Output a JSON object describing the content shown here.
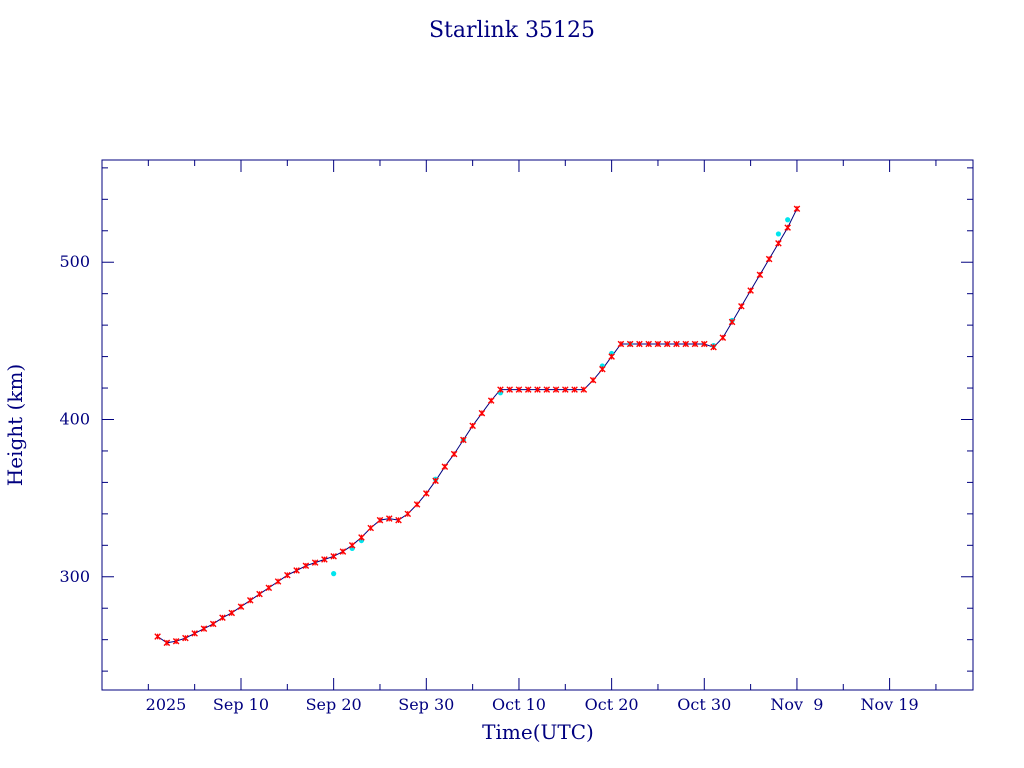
{
  "colors": {
    "axis": "#00007f",
    "line": "#00007f",
    "marker_primary": "#ff0000",
    "marker_secondary": "#00e5ee"
  },
  "chart_data": {
    "type": "line",
    "title": "Starlink 35125",
    "xlabel": "Time(UTC)",
    "ylabel": "Height (km)",
    "x_axis": {
      "type": "date",
      "range": [
        "2025-08-26",
        "2025-11-28"
      ],
      "year_label": "2025",
      "ticks": [
        {
          "date": "2025-09-10",
          "label": "Sep 10"
        },
        {
          "date": "2025-09-20",
          "label": "Sep 20"
        },
        {
          "date": "2025-09-30",
          "label": "Sep 30"
        },
        {
          "date": "2025-10-10",
          "label": "Oct 10"
        },
        {
          "date": "2025-10-20",
          "label": "Oct 20"
        },
        {
          "date": "2025-10-30",
          "label": "Oct 30"
        },
        {
          "date": "2025-11-09",
          "label": "Nov  9"
        },
        {
          "date": "2025-11-19",
          "label": "Nov 19"
        }
      ],
      "minor_ticks": [
        "2025-08-31",
        "2025-09-05",
        "2025-09-15",
        "2025-09-25",
        "2025-10-05",
        "2025-10-15",
        "2025-10-25",
        "2025-11-04",
        "2025-11-14",
        "2025-11-24"
      ]
    },
    "y_axis": {
      "range": [
        228,
        565
      ],
      "ticks": [
        {
          "value": 300,
          "label": "300"
        },
        {
          "value": 400,
          "label": "400"
        },
        {
          "value": 500,
          "label": "500"
        }
      ],
      "minor_ticks": [
        240,
        260,
        280,
        320,
        340,
        360,
        380,
        420,
        440,
        460,
        480,
        520,
        540,
        560
      ]
    },
    "grid": false,
    "series": [
      {
        "marker": "red-cross",
        "points": [
          [
            "2025-09-01",
            262
          ],
          [
            "2025-09-02",
            258
          ],
          [
            "2025-09-03",
            259
          ],
          [
            "2025-09-04",
            261
          ],
          [
            "2025-09-05",
            264
          ],
          [
            "2025-09-06",
            267
          ],
          [
            "2025-09-07",
            270
          ],
          [
            "2025-09-08",
            274
          ],
          [
            "2025-09-09",
            277
          ],
          [
            "2025-09-10",
            281
          ],
          [
            "2025-09-11",
            285
          ],
          [
            "2025-09-12",
            289
          ],
          [
            "2025-09-13",
            293
          ],
          [
            "2025-09-14",
            297
          ],
          [
            "2025-09-15",
            301
          ],
          [
            "2025-09-16",
            304
          ],
          [
            "2025-09-17",
            307
          ],
          [
            "2025-09-18",
            309
          ],
          [
            "2025-09-19",
            311
          ],
          [
            "2025-09-20",
            313
          ],
          [
            "2025-09-21",
            316
          ],
          [
            "2025-09-22",
            320
          ],
          [
            "2025-09-23",
            325
          ],
          [
            "2025-09-24",
            331
          ],
          [
            "2025-09-25",
            336
          ],
          [
            "2025-09-26",
            337
          ],
          [
            "2025-09-27",
            336
          ],
          [
            "2025-09-28",
            340
          ],
          [
            "2025-09-29",
            346
          ],
          [
            "2025-09-30",
            353
          ],
          [
            "2025-10-01",
            361
          ],
          [
            "2025-10-02",
            370
          ],
          [
            "2025-10-03",
            378
          ],
          [
            "2025-10-04",
            387
          ],
          [
            "2025-10-05",
            396
          ],
          [
            "2025-10-06",
            404
          ],
          [
            "2025-10-07",
            412
          ],
          [
            "2025-10-08",
            419
          ],
          [
            "2025-10-09",
            419
          ],
          [
            "2025-10-10",
            419
          ],
          [
            "2025-10-11",
            419
          ],
          [
            "2025-10-12",
            419
          ],
          [
            "2025-10-13",
            419
          ],
          [
            "2025-10-14",
            419
          ],
          [
            "2025-10-15",
            419
          ],
          [
            "2025-10-16",
            419
          ],
          [
            "2025-10-17",
            419
          ],
          [
            "2025-10-18",
            425
          ],
          [
            "2025-10-19",
            432
          ],
          [
            "2025-10-20",
            440
          ],
          [
            "2025-10-21",
            448
          ],
          [
            "2025-10-22",
            448
          ],
          [
            "2025-10-23",
            448
          ],
          [
            "2025-10-24",
            448
          ],
          [
            "2025-10-25",
            448
          ],
          [
            "2025-10-26",
            448
          ],
          [
            "2025-10-27",
            448
          ],
          [
            "2025-10-28",
            448
          ],
          [
            "2025-10-29",
            448
          ],
          [
            "2025-10-30",
            448
          ],
          [
            "2025-10-31",
            446
          ],
          [
            "2025-11-01",
            452
          ],
          [
            "2025-11-02",
            462
          ],
          [
            "2025-11-03",
            472
          ],
          [
            "2025-11-04",
            482
          ],
          [
            "2025-11-05",
            492
          ],
          [
            "2025-11-06",
            502
          ],
          [
            "2025-11-07",
            512
          ],
          [
            "2025-11-08",
            522
          ],
          [
            "2025-11-09",
            534
          ]
        ]
      },
      {
        "marker": "cyan-dot",
        "points": [
          [
            "2025-09-20",
            302
          ],
          [
            "2025-09-22",
            318
          ],
          [
            "2025-09-23",
            323
          ],
          [
            "2025-10-01",
            362
          ],
          [
            "2025-10-04",
            387
          ],
          [
            "2025-10-08",
            417
          ],
          [
            "2025-10-19",
            434
          ],
          [
            "2025-10-20",
            442
          ],
          [
            "2025-10-22",
            448
          ],
          [
            "2025-10-31",
            447
          ],
          [
            "2025-11-02",
            463
          ],
          [
            "2025-11-07",
            518
          ],
          [
            "2025-11-08",
            527
          ]
        ]
      }
    ]
  }
}
